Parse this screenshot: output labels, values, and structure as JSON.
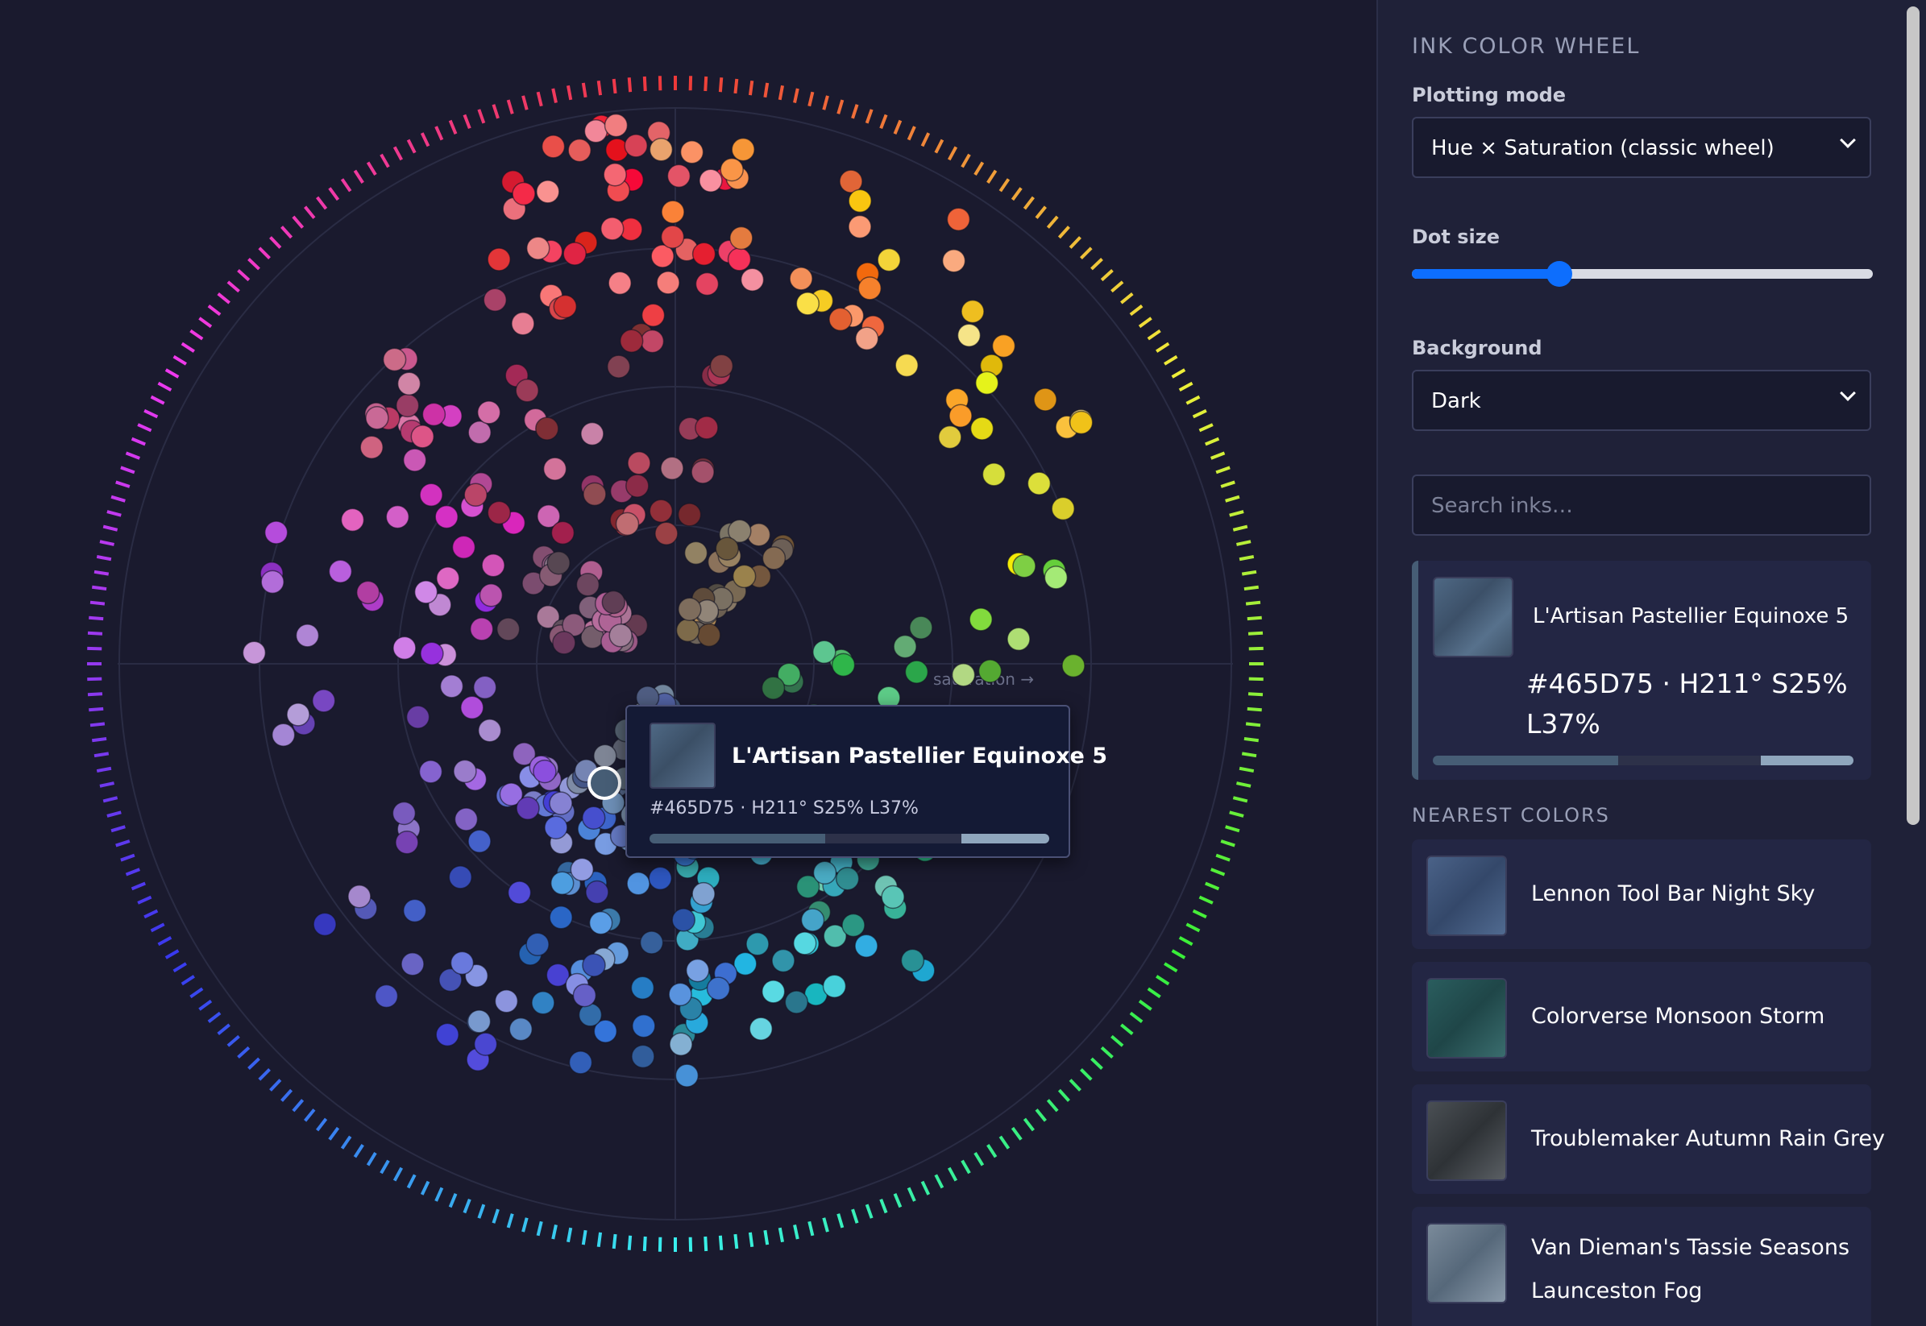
{
  "sidebar": {
    "title": "INK COLOR WHEEL",
    "plotting_mode": {
      "label": "Plotting mode",
      "value": "Hue × Saturation (classic wheel)"
    },
    "dot_size": {
      "label": "Dot size",
      "value_fraction": 0.32
    },
    "background": {
      "label": "Background",
      "value": "Dark"
    },
    "search": {
      "placeholder": "Search inks…"
    },
    "selected": {
      "name": "L'Artisan Pastellier Equinoxe 5",
      "meta": "#465D75 · H211° S25% L37%",
      "hex": "#465d75",
      "strip_colors": [
        "#465d75",
        "#2d3149",
        "#8fa6bd"
      ]
    },
    "nearest_title": "NEAREST COLORS",
    "nearest": [
      {
        "name": "Lennon Tool Bar Night Sky",
        "swatch": "#3e5578"
      },
      {
        "name": "Colorverse Monsoon Storm",
        "swatch": "#2f5a5a"
      },
      {
        "name": "Troublemaker Autumn Rain Grey",
        "swatch": "#3f4448"
      },
      {
        "name": "Van Dieman's Tassie Seasons Launceston Fog",
        "swatch": "#6b7b8c"
      }
    ]
  },
  "plot": {
    "axis_label": "saturation →"
  },
  "tooltip": {
    "name": "L'Artisan Pastellier Equinoxe 5",
    "meta": "#465D75 · H211° S25% L37%"
  }
}
